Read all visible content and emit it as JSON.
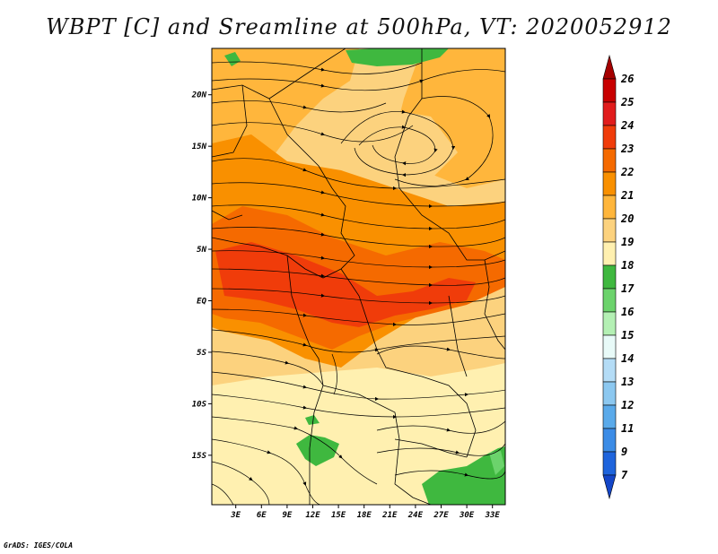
{
  "title": "WBPT [C] and Sreamline at 500hPa, VT: 2020052912",
  "credit": "GrADS: IGES/COLA",
  "map": {
    "lat_labels": [
      {
        "label": "20N",
        "lat": 20
      },
      {
        "label": "15N",
        "lat": 15
      },
      {
        "label": "10N",
        "lat": 10
      },
      {
        "label": "5N",
        "lat": 5
      },
      {
        "label": "EQ",
        "lat": 0
      },
      {
        "label": "5S",
        "lat": -5
      },
      {
        "label": "10S",
        "lat": -10
      },
      {
        "label": "15S",
        "lat": -15
      }
    ],
    "lon_labels": [
      {
        "label": "3E",
        "lon": 3
      },
      {
        "label": "6E",
        "lon": 6
      },
      {
        "label": "9E",
        "lon": 9
      },
      {
        "label": "12E",
        "lon": 12
      },
      {
        "label": "15E",
        "lon": 15
      },
      {
        "label": "18E",
        "lon": 18
      },
      {
        "label": "21E",
        "lon": 21
      },
      {
        "label": "24E",
        "lon": 24
      },
      {
        "label": "27E",
        "lon": 27
      },
      {
        "label": "30E",
        "lon": 30
      },
      {
        "label": "33E",
        "lon": 33
      }
    ],
    "lon_range": [
      0.2,
      34.5
    ],
    "lat_range": [
      -19.8,
      24.5
    ]
  },
  "colorbar": {
    "levels": [
      "26",
      "25",
      "24",
      "23",
      "22",
      "21",
      "20",
      "19",
      "18",
      "17",
      "16",
      "15",
      "14",
      "13",
      "12",
      "11",
      "9",
      "7"
    ],
    "colors": [
      "#a50000",
      "#c80000",
      "#e11c1c",
      "#f03c0a",
      "#f56a00",
      "#f99000",
      "#ffb63c",
      "#fcd27e",
      "#fff0b0",
      "#3fb83f",
      "#6cd36c",
      "#b4f0b4",
      "#e8faf8",
      "#b4dcf6",
      "#8cc8f0",
      "#5aaaea",
      "#3c8ce6",
      "#1e64dc",
      "#1446c8"
    ]
  },
  "colors": {
    "ocean": "#fff0b0",
    "background": "#fcd27e"
  }
}
